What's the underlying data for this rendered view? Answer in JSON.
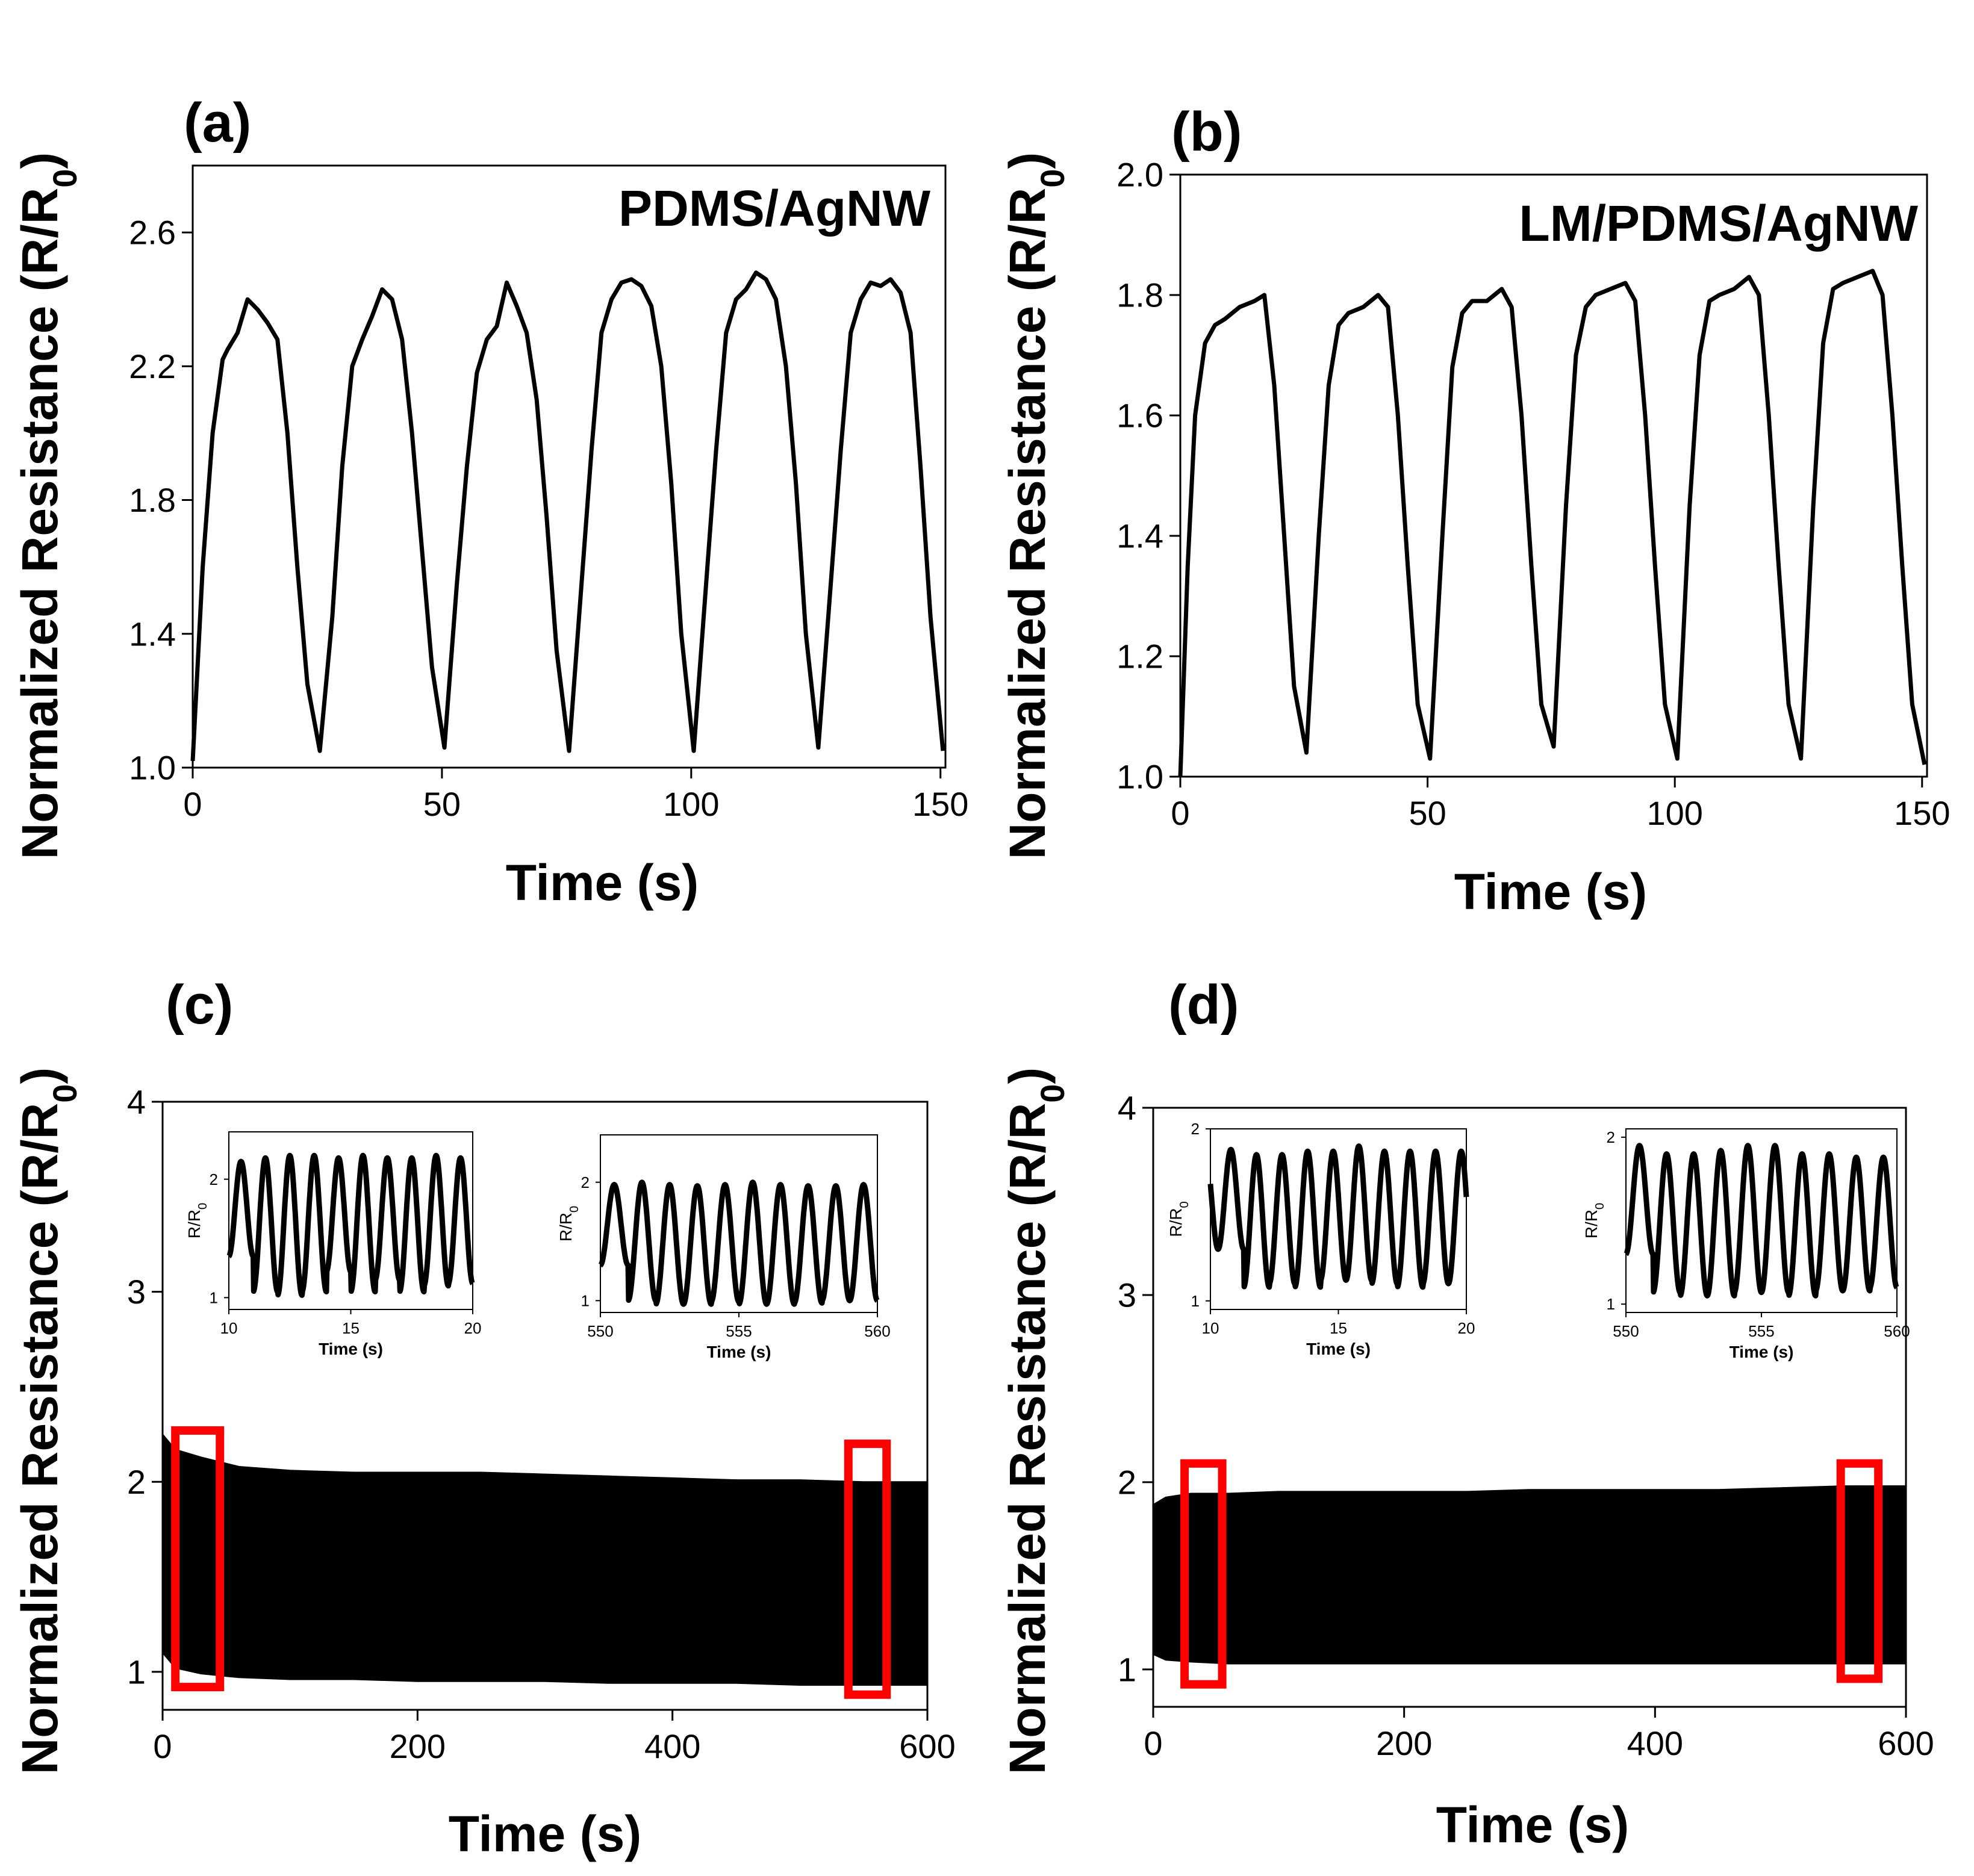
{
  "figure": {
    "background": "#ffffff",
    "line_color": "#000000",
    "highlight_color": "#ff0000"
  },
  "chart_data": [
    {
      "id": "a",
      "panel_label": "(a)",
      "type": "line",
      "annotation": "PDMS/AgNW",
      "xlabel": "Time (s)",
      "ylabel_main": "Normalized Resistance (R/R",
      "ylabel_sub": "0",
      "ylabel_close": ")",
      "xlim": [
        0,
        151
      ],
      "ylim": [
        1.0,
        2.8
      ],
      "xticks": [
        0,
        50,
        100,
        150
      ],
      "yticks": [
        1.0,
        1.4,
        1.8,
        2.2,
        2.6
      ],
      "ytick_labels": [
        "1.0",
        "1.4",
        "1.8",
        "2.2",
        "2.6"
      ],
      "series": [
        {
          "x": [
            0,
            2,
            4,
            6,
            7,
            9,
            11,
            13,
            15,
            17,
            19,
            21,
            23,
            25.5,
            28,
            30,
            32,
            34,
            36,
            38,
            40,
            42,
            44,
            46,
            48,
            50.5,
            53,
            55,
            57,
            59,
            61,
            63,
            65,
            67,
            69,
            71,
            73,
            75.5,
            78,
            80,
            82,
            84,
            86,
            88,
            90,
            92,
            94,
            96,
            98,
            100.5,
            103,
            105,
            107,
            109,
            111,
            113,
            115,
            117,
            119,
            121,
            123,
            125.5,
            128,
            130,
            132,
            134,
            136,
            138,
            140,
            142,
            144,
            146,
            148,
            150.5
          ],
          "y": [
            1.02,
            1.6,
            2.0,
            2.22,
            2.25,
            2.3,
            2.4,
            2.37,
            2.33,
            2.28,
            2.0,
            1.6,
            1.25,
            1.05,
            1.45,
            1.9,
            2.2,
            2.28,
            2.35,
            2.43,
            2.4,
            2.28,
            2.0,
            1.65,
            1.3,
            1.06,
            1.55,
            1.9,
            2.18,
            2.28,
            2.32,
            2.45,
            2.38,
            2.3,
            2.1,
            1.75,
            1.35,
            1.05,
            1.55,
            1.95,
            2.3,
            2.4,
            2.45,
            2.46,
            2.44,
            2.38,
            2.2,
            1.85,
            1.4,
            1.05,
            1.55,
            1.95,
            2.3,
            2.4,
            2.43,
            2.48,
            2.46,
            2.4,
            2.2,
            1.85,
            1.4,
            1.06,
            1.55,
            1.95,
            2.3,
            2.4,
            2.45,
            2.44,
            2.46,
            2.42,
            2.3,
            1.9,
            1.45,
            1.05
          ]
        }
      ]
    },
    {
      "id": "b",
      "panel_label": "(b)",
      "type": "line",
      "annotation": "LM/PDMS/AgNW",
      "xlabel": "Time (s)",
      "ylabel_main": "Normalized Resistance (R/R",
      "ylabel_sub": "0",
      "ylabel_close": ")",
      "xlim": [
        0,
        151
      ],
      "ylim": [
        1.0,
        2.0
      ],
      "xticks": [
        0,
        50,
        100,
        150
      ],
      "yticks": [
        1.0,
        1.2,
        1.4,
        1.6,
        1.8,
        2.0
      ],
      "ytick_labels": [
        "1.0",
        "1.2",
        "1.4",
        "1.6",
        "1.8",
        "2.0"
      ],
      "series": [
        {
          "x": [
            0,
            1.5,
            3,
            5,
            7,
            9,
            12,
            15,
            17,
            19,
            21,
            23,
            25.5,
            28,
            30,
            32,
            34,
            37,
            40,
            42,
            44,
            46,
            48,
            50.5,
            53,
            55,
            57,
            59,
            62,
            65,
            67,
            69,
            71,
            73,
            75.5,
            78,
            80,
            82,
            84,
            87,
            90,
            92,
            94,
            96,
            98,
            100.5,
            103,
            105,
            107,
            109,
            112,
            115,
            117,
            119,
            121,
            123,
            125.5,
            128,
            130,
            132,
            134,
            137,
            140,
            142,
            144,
            146,
            148,
            150.5
          ],
          "y": [
            1.0,
            1.35,
            1.6,
            1.72,
            1.75,
            1.76,
            1.78,
            1.79,
            1.8,
            1.65,
            1.4,
            1.15,
            1.04,
            1.4,
            1.65,
            1.75,
            1.77,
            1.78,
            1.8,
            1.78,
            1.6,
            1.35,
            1.12,
            1.03,
            1.4,
            1.68,
            1.77,
            1.79,
            1.79,
            1.81,
            1.78,
            1.6,
            1.35,
            1.12,
            1.05,
            1.45,
            1.7,
            1.78,
            1.8,
            1.81,
            1.82,
            1.79,
            1.6,
            1.35,
            1.12,
            1.03,
            1.45,
            1.7,
            1.79,
            1.8,
            1.81,
            1.83,
            1.8,
            1.6,
            1.35,
            1.12,
            1.03,
            1.45,
            1.72,
            1.81,
            1.82,
            1.83,
            1.84,
            1.8,
            1.6,
            1.35,
            1.12,
            1.02
          ]
        }
      ]
    },
    {
      "id": "c",
      "panel_label": "(c)",
      "type": "area",
      "xlabel": "Time (s)",
      "ylabel_main": "Normalized Resistance (R/R",
      "ylabel_sub": "0",
      "ylabel_close": ")",
      "xlim": [
        0,
        600
      ],
      "ylim": [
        0.8,
        4.0
      ],
      "xticks": [
        0,
        200,
        400,
        600
      ],
      "yticks": [
        1,
        2,
        3,
        4
      ],
      "ytick_labels": [
        "1",
        "2",
        "3",
        "4"
      ],
      "envelope": {
        "x": [
          0,
          10,
          30,
          60,
          100,
          150,
          200,
          250,
          300,
          350,
          400,
          450,
          500,
          550,
          600
        ],
        "upper": [
          2.25,
          2.17,
          2.13,
          2.08,
          2.06,
          2.05,
          2.05,
          2.05,
          2.04,
          2.03,
          2.02,
          2.01,
          2.01,
          2.0,
          2.0
        ],
        "lower": [
          1.1,
          1.02,
          0.99,
          0.97,
          0.96,
          0.96,
          0.95,
          0.95,
          0.95,
          0.94,
          0.94,
          0.94,
          0.93,
          0.93,
          0.93
        ]
      },
      "highlights": [
        {
          "x0": 10,
          "x1": 45,
          "y0": 0.92,
          "y1": 2.27
        },
        {
          "x0": 538,
          "x1": 568,
          "y0": 0.88,
          "y1": 2.2
        }
      ],
      "insets": [
        {
          "xlabel": "Time (s)",
          "ylabel_main": "R/R",
          "ylabel_sub": "0",
          "xlim": [
            10,
            20
          ],
          "ylim": [
            0.9,
            2.4
          ],
          "xticks": [
            10,
            15,
            20
          ],
          "yticks": [
            1,
            2
          ],
          "ytick_labels": [
            "1",
            "2"
          ],
          "wave": {
            "period": 1.0,
            "phase": 10.5,
            "peaks": [
              2.15,
              2.18,
              2.2,
              2.2,
              2.18,
              2.2,
              2.18,
              2.18,
              2.2,
              2.18,
              2.18
            ],
            "troughs": [
              1.35,
              1.05,
              1.02,
              1.05,
              1.22,
              1.05,
              1.15,
              1.05,
              1.1,
              1.12,
              1.08
            ]
          }
        },
        {
          "xlabel": "Time (s)",
          "ylabel_main": "R/R",
          "ylabel_sub": "0",
          "xlim": [
            550,
            560
          ],
          "ylim": [
            0.9,
            2.4
          ],
          "xticks": [
            550,
            555,
            560
          ],
          "tick_labels": [
            "550",
            "555",
            "560"
          ],
          "yticks": [
            1,
            2
          ],
          "ytick_labels": [
            "1",
            "2"
          ],
          "wave": {
            "period": 1.0,
            "phase": 550.5,
            "peaks": [
              1.98,
              2.0,
              1.98,
              1.97,
              1.98,
              2.0,
              1.98,
              1.97,
              1.97,
              1.98,
              1.97
            ],
            "troughs": [
              1.3,
              1.0,
              0.97,
              0.97,
              0.99,
              0.97,
              0.97,
              0.98,
              1.0,
              1.0,
              1.0
            ]
          }
        }
      ]
    },
    {
      "id": "d",
      "panel_label": "(d)",
      "type": "area",
      "xlabel": "Time (s)",
      "ylabel_main": "Normalized Resistance (R/R",
      "ylabel_sub": "0",
      "ylabel_close": ")",
      "xlim": [
        0,
        600
      ],
      "ylim": [
        0.8,
        4.0
      ],
      "xticks": [
        0,
        200,
        400,
        600
      ],
      "yticks": [
        1,
        2,
        3,
        4
      ],
      "ytick_labels": [
        "1",
        "2",
        "3",
        "4"
      ],
      "envelope": {
        "x": [
          0,
          10,
          30,
          60,
          100,
          150,
          200,
          250,
          300,
          350,
          400,
          450,
          500,
          550,
          600
        ],
        "upper": [
          1.88,
          1.92,
          1.94,
          1.94,
          1.95,
          1.95,
          1.95,
          1.95,
          1.96,
          1.96,
          1.96,
          1.96,
          1.97,
          1.98,
          1.98
        ],
        "lower": [
          1.08,
          1.05,
          1.04,
          1.03,
          1.03,
          1.03,
          1.03,
          1.03,
          1.03,
          1.03,
          1.03,
          1.03,
          1.03,
          1.03,
          1.03
        ]
      },
      "highlights": [
        {
          "x0": 25,
          "x1": 55,
          "y0": 0.92,
          "y1": 2.1
        },
        {
          "x0": 548,
          "x1": 578,
          "y0": 0.95,
          "y1": 2.1
        }
      ],
      "insets": [
        {
          "xlabel": "Time (s)",
          "ylabel_main": "R/R",
          "ylabel_sub": "0",
          "xlim": [
            10,
            20
          ],
          "ylim": [
            0.95,
            2.0
          ],
          "xticks": [
            10,
            15,
            20
          ],
          "yticks": [
            1,
            2
          ],
          "ytick_labels": [
            "1",
            "2"
          ],
          "wave": {
            "period": 1.0,
            "phase": 10.8,
            "peaks": [
              1.88,
              1.85,
              1.85,
              1.87,
              1.87,
              1.9,
              1.87,
              1.87,
              1.87,
              1.87,
              1.87
            ],
            "troughs": [
              1.3,
              1.08,
              1.1,
              1.08,
              1.12,
              1.12,
              1.1,
              1.08,
              1.1,
              1.1,
              1.1
            ]
          }
        },
        {
          "xlabel": "Time (s)",
          "ylabel_main": "R/R",
          "ylabel_sub": "0",
          "xlim": [
            550,
            560
          ],
          "ylim": [
            0.95,
            2.05
          ],
          "xticks": [
            550,
            555,
            560
          ],
          "yticks": [
            1,
            2
          ],
          "ytick_labels": [
            "1",
            "2"
          ],
          "wave": {
            "period": 1.0,
            "phase": 550.5,
            "peaks": [
              1.95,
              1.9,
              1.9,
              1.92,
              1.95,
              1.95,
              1.9,
              1.9,
              1.88,
              1.88,
              1.88
            ],
            "troughs": [
              1.3,
              1.07,
              1.05,
              1.05,
              1.07,
              1.07,
              1.05,
              1.08,
              1.08,
              1.1,
              1.08
            ]
          }
        }
      ]
    }
  ]
}
